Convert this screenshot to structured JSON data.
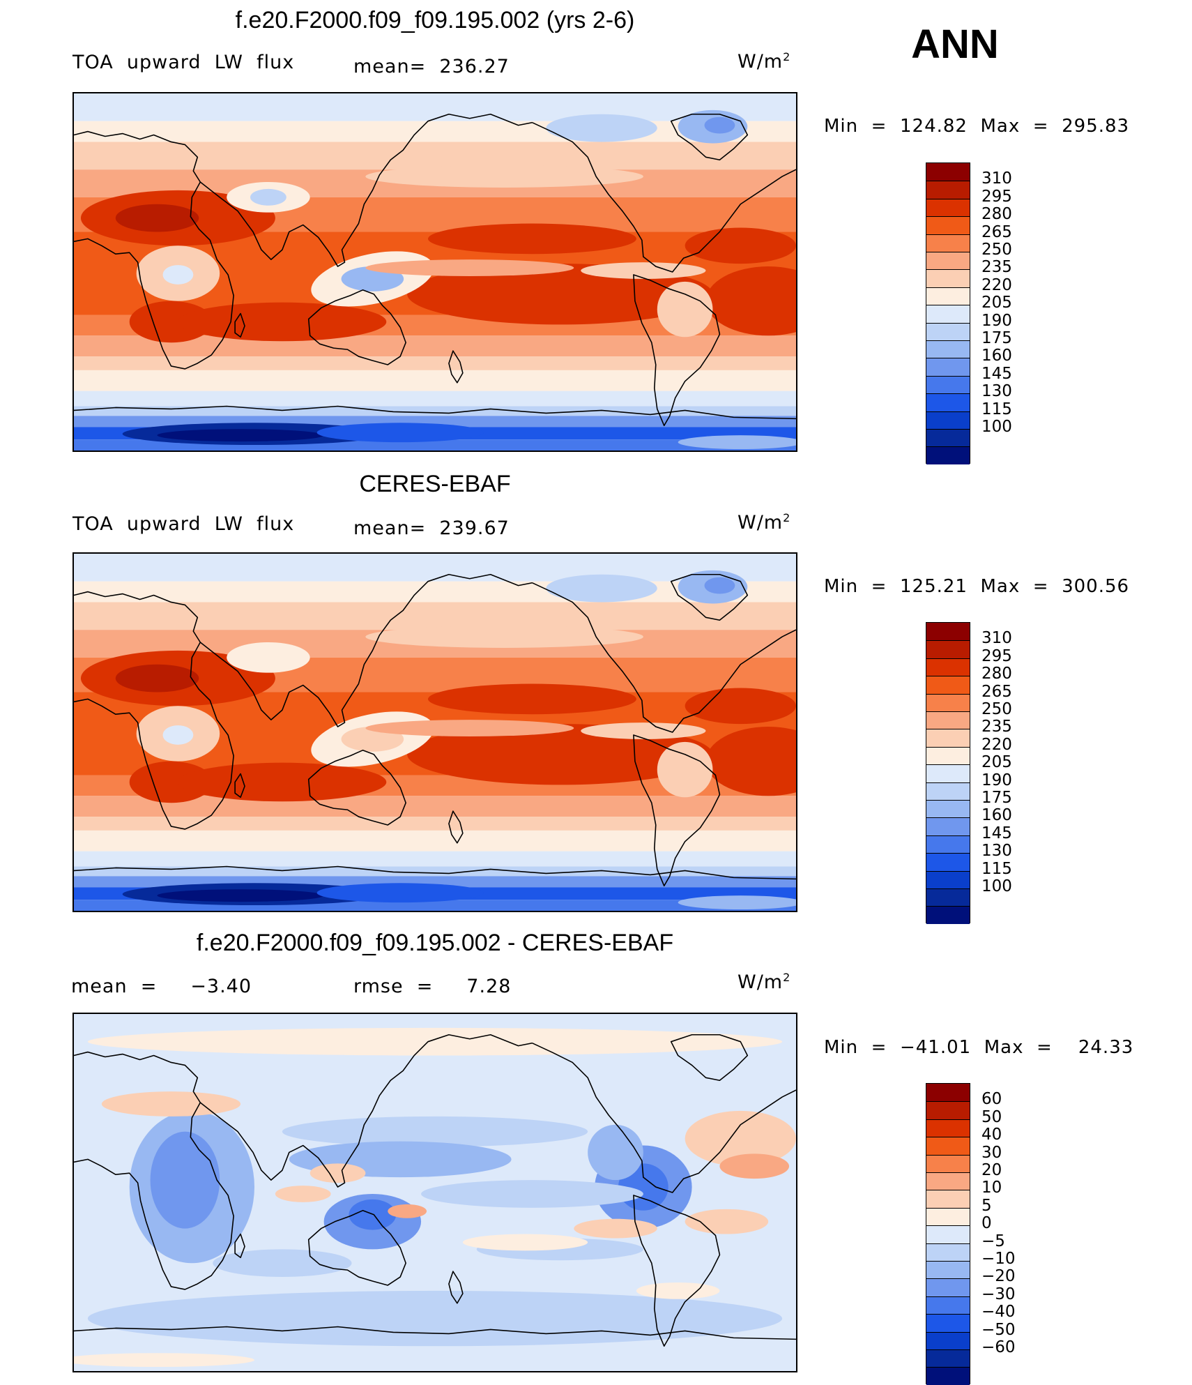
{
  "season": "ANN",
  "panels": [
    {
      "title": "f.e20.F2000.f09_f09.195.002 (yrs 2-6)",
      "left_label": "TOA  upward  LW  flux",
      "mid_label": "mean=  236.27",
      "units_base": "W/m",
      "units_sup": "2",
      "minmax": "Min  =  124.82  Max  =  295.83",
      "scale": "abs"
    },
    {
      "title": "CERES-EBAF",
      "left_label": "TOA  upward  LW  flux",
      "mid_label": "mean=  239.67",
      "units_base": "W/m",
      "units_sup": "2",
      "minmax": "Min  =  125.21  Max  =  300.56",
      "scale": "abs"
    },
    {
      "title": "f.e20.F2000.f09_f09.195.002 - CERES-EBAF",
      "left_label": "mean  =     −3.40",
      "mid_label": "rmse  =     7.28",
      "units_base": "W/m",
      "units_sup": "2",
      "minmax": "Min  =  −41.01  Max  =    24.33",
      "scale": "diff"
    }
  ],
  "colorbars": {
    "abs": {
      "labels": [
        "310",
        "295",
        "280",
        "265",
        "250",
        "235",
        "220",
        "205",
        "190",
        "175",
        "160",
        "145",
        "130",
        "115",
        "100"
      ],
      "colors": [
        "#8c0000",
        "#b81c00",
        "#db3200",
        "#f05a17",
        "#f7814a",
        "#f9a883",
        "#fbcfb4",
        "#fdeee0",
        "#dde9fa",
        "#bdd3f6",
        "#98b8f2",
        "#7097ee",
        "#4678ec",
        "#1d57e8",
        "#0a3fcb",
        "#062a9a",
        "#00107a"
      ]
    },
    "diff": {
      "labels": [
        "60",
        "50",
        "40",
        "30",
        "20",
        "10",
        "5",
        "0",
        "−5",
        "−10",
        "−20",
        "−30",
        "−40",
        "−50",
        "−60"
      ],
      "colors": [
        "#8c0000",
        "#b81c00",
        "#db3200",
        "#f05a17",
        "#f7814a",
        "#f9a883",
        "#fbcfb4",
        "#fdeee0",
        "#dde9fa",
        "#bdd3f6",
        "#98b8f2",
        "#7097ee",
        "#4678ec",
        "#1d57e8",
        "#0a3fcb",
        "#062a9a",
        "#00107a"
      ]
    }
  },
  "chart_data": [
    {
      "type": "heatmap",
      "title": "f.e20.F2000.f09_f09.195.002 (yrs 2-6)",
      "variable": "TOA upward LW flux",
      "units": "W/m2",
      "mean": 236.27,
      "min": 124.82,
      "max": 295.83,
      "contour_levels": [
        100,
        115,
        130,
        145,
        160,
        175,
        190,
        205,
        220,
        235,
        250,
        265,
        280,
        295,
        310
      ]
    },
    {
      "type": "heatmap",
      "title": "CERES-EBAF",
      "variable": "TOA upward LW flux",
      "units": "W/m2",
      "mean": 239.67,
      "min": 125.21,
      "max": 300.56,
      "contour_levels": [
        100,
        115,
        130,
        145,
        160,
        175,
        190,
        205,
        220,
        235,
        250,
        265,
        280,
        295,
        310
      ]
    },
    {
      "type": "heatmap",
      "title": "f.e20.F2000.f09_f09.195.002 - CERES-EBAF",
      "units": "W/m2",
      "mean": -3.4,
      "rmse": 7.28,
      "min": -41.01,
      "max": 24.33,
      "contour_levels": [
        -60,
        -50,
        -40,
        -30,
        -20,
        -10,
        -5,
        0,
        5,
        10,
        20,
        30,
        40,
        50,
        60
      ]
    }
  ]
}
